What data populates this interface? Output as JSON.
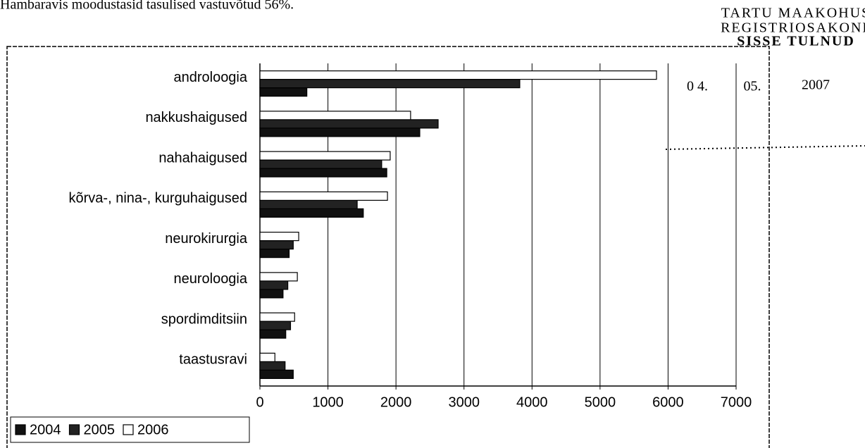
{
  "text": "Hambaravis moodustasid tasulised vastuvõtud 56%.",
  "stamp": {
    "lines": [
      "TARTU MAAKOHUS",
      "REGISTRIOSAKOND",
      "SISSE TULNUD"
    ],
    "date": [
      "0 4.",
      "05.",
      "2007"
    ]
  },
  "chart_data": {
    "type": "bar",
    "orientation": "horizontal",
    "categories": [
      "androloogia",
      "nakkushaigused",
      "nahahaigused",
      "kõrva-, nina-, kurguhaigused",
      "neurokirurgia",
      "neuroloogia",
      "spordimditsiin",
      "taastusravi"
    ],
    "series": [
      {
        "name": "2004",
        "color": "#111111",
        "values": [
          690,
          2350,
          1865,
          1520,
          430,
          340,
          380,
          490
        ]
      },
      {
        "name": "2005",
        "color": "#222222",
        "values": [
          3820,
          2620,
          1790,
          1430,
          490,
          410,
          450,
          370
        ]
      },
      {
        "name": "2006",
        "color": "#ffffff",
        "values": [
          5830,
          2215,
          1915,
          1875,
          570,
          550,
          510,
          220
        ]
      }
    ],
    "xlim": [
      0,
      7000
    ],
    "xticks": [
      0,
      1000,
      2000,
      3000,
      4000,
      5000,
      6000,
      7000
    ],
    "grid": true,
    "legend": "bottom-left"
  }
}
